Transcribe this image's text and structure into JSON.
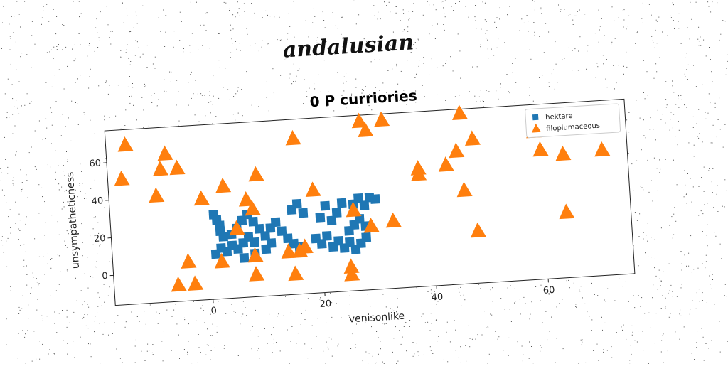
{
  "figure_title": "andalusian",
  "chart_data": {
    "type": "scatter",
    "title": "0 P curriories",
    "xlabel": "venisonlike",
    "ylabel": "unsympatheticness",
    "xlim": [
      -17.5,
      75.5
    ],
    "ylim": [
      -16,
      77
    ],
    "x_ticks": [
      0,
      20,
      40,
      60
    ],
    "y_ticks": [
      0,
      20,
      40,
      60
    ],
    "grid": false,
    "legend_position": "top-right",
    "series": [
      {
        "name": "hektare",
        "marker": "square",
        "color": "#1f77b4",
        "points": [
          [
            1,
            29
          ],
          [
            1.5,
            26
          ],
          [
            2,
            23
          ],
          [
            2,
            20
          ],
          [
            2.5,
            17
          ],
          [
            1,
            8
          ],
          [
            2,
            11
          ],
          [
            3,
            9
          ],
          [
            4,
            12
          ],
          [
            5,
            10
          ],
          [
            6,
            13
          ],
          [
            4,
            18
          ],
          [
            5,
            21
          ],
          [
            6,
            25
          ],
          [
            7,
            28
          ],
          [
            8,
            24
          ],
          [
            9,
            20
          ],
          [
            7,
            16
          ],
          [
            8,
            13
          ],
          [
            10,
            16
          ],
          [
            11,
            20
          ],
          [
            12,
            23
          ],
          [
            6,
            5
          ],
          [
            8,
            7
          ],
          [
            10,
            9
          ],
          [
            11,
            12
          ],
          [
            13,
            18
          ],
          [
            14,
            14
          ],
          [
            15,
            11
          ],
          [
            16,
            9
          ],
          [
            15,
            29
          ],
          [
            16,
            32
          ],
          [
            17,
            27
          ],
          [
            20,
            24
          ],
          [
            21,
            30
          ],
          [
            22,
            22
          ],
          [
            23,
            26
          ],
          [
            24,
            31
          ],
          [
            19,
            13
          ],
          [
            20,
            10
          ],
          [
            21,
            14
          ],
          [
            22,
            8
          ],
          [
            23,
            11
          ],
          [
            24,
            7
          ],
          [
            25,
            10
          ],
          [
            26,
            6
          ],
          [
            27,
            9
          ],
          [
            28,
            12
          ],
          [
            25,
            16
          ],
          [
            26,
            19
          ],
          [
            27,
            22
          ],
          [
            28,
            18
          ],
          [
            26,
            30
          ],
          [
            27,
            33
          ],
          [
            28,
            29
          ],
          [
            29,
            33
          ],
          [
            30,
            32
          ]
        ]
      },
      {
        "name": "filoplumaceous",
        "marker": "triangle",
        "color": "#ff7f0e",
        "points": [
          [
            -14,
            69
          ],
          [
            -15,
            51
          ],
          [
            -9,
            41
          ],
          [
            -7,
            63
          ],
          [
            -8,
            55
          ],
          [
            -5,
            55
          ],
          [
            -4,
            5
          ],
          [
            -6,
            -7
          ],
          [
            -3,
            -7
          ],
          [
            -1,
            38
          ],
          [
            2,
            4
          ],
          [
            3,
            44
          ],
          [
            5,
            21
          ],
          [
            7,
            36
          ],
          [
            8,
            31
          ],
          [
            9,
            49
          ],
          [
            8,
            6
          ],
          [
            8,
            -4
          ],
          [
            14,
            7
          ],
          [
            16,
            7
          ],
          [
            17,
            9
          ],
          [
            16,
            67
          ],
          [
            19,
            39
          ],
          [
            15,
            -5
          ],
          [
            25,
            -3
          ],
          [
            25,
            -7
          ],
          [
            26,
            27
          ],
          [
            29,
            18
          ],
          [
            33,
            20
          ],
          [
            28,
            74
          ],
          [
            29,
            69
          ],
          [
            32,
            74
          ],
          [
            38,
            47
          ],
          [
            38,
            44
          ],
          [
            43,
            48
          ],
          [
            45,
            55
          ],
          [
            46,
            34
          ],
          [
            46,
            75
          ],
          [
            48,
            61
          ],
          [
            48,
            12
          ],
          [
            59,
            63
          ],
          [
            60,
            53
          ],
          [
            64,
            50
          ],
          [
            64,
            19
          ],
          [
            71,
            51
          ]
        ]
      }
    ]
  }
}
